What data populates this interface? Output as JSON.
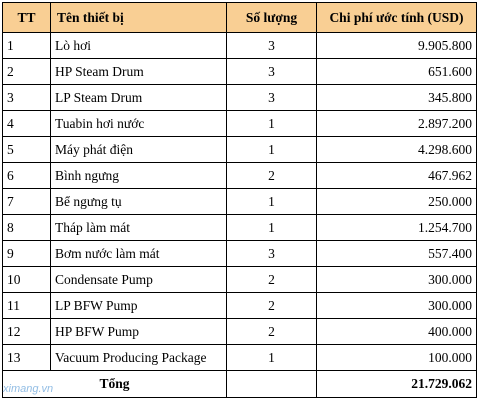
{
  "table": {
    "headers": {
      "tt": "TT",
      "name": "Tên thiết bị",
      "qty": "Số lượng",
      "cost": "Chi phí ước tính (USD)"
    },
    "rows": [
      {
        "tt": "1",
        "name": "Lò hơi",
        "qty": "3",
        "cost": "9.905.800"
      },
      {
        "tt": "2",
        "name": "HP Steam Drum",
        "qty": "3",
        "cost": "651.600"
      },
      {
        "tt": "3",
        "name": "LP Steam Drum",
        "qty": "3",
        "cost": "345.800"
      },
      {
        "tt": "4",
        "name": "Tuabin hơi nước",
        "qty": "1",
        "cost": "2.897.200"
      },
      {
        "tt": "5",
        "name": "Máy phát điện",
        "qty": "1",
        "cost": "4.298.600"
      },
      {
        "tt": "6",
        "name": "Bình ngưng",
        "qty": "2",
        "cost": "467.962"
      },
      {
        "tt": "7",
        "name": "Bể ngưng tụ",
        "qty": "1",
        "cost": "250.000"
      },
      {
        "tt": "8",
        "name": "Tháp làm mát",
        "qty": "1",
        "cost": "1.254.700"
      },
      {
        "tt": "9",
        "name": "Bơm nước làm mát",
        "qty": "3",
        "cost": "557.400"
      },
      {
        "tt": "10",
        "name": "Condensate Pump",
        "qty": "2",
        "cost": "300.000"
      },
      {
        "tt": "11",
        "name": "LP BFW Pump",
        "qty": "2",
        "cost": "300.000"
      },
      {
        "tt": "12",
        "name": "HP BFW Pump",
        "qty": "2",
        "cost": "400.000"
      },
      {
        "tt": "13",
        "name": "Vacuum Producing Package",
        "qty": "1",
        "cost": "100.000"
      }
    ],
    "total": {
      "label": "Tổng",
      "cost": "21.729.062"
    }
  },
  "watermark": {
    "text": "ximang.vn"
  },
  "colors": {
    "header_bg": "#f9cf94",
    "border": "#000000",
    "watermark": "#7fb2e0"
  }
}
